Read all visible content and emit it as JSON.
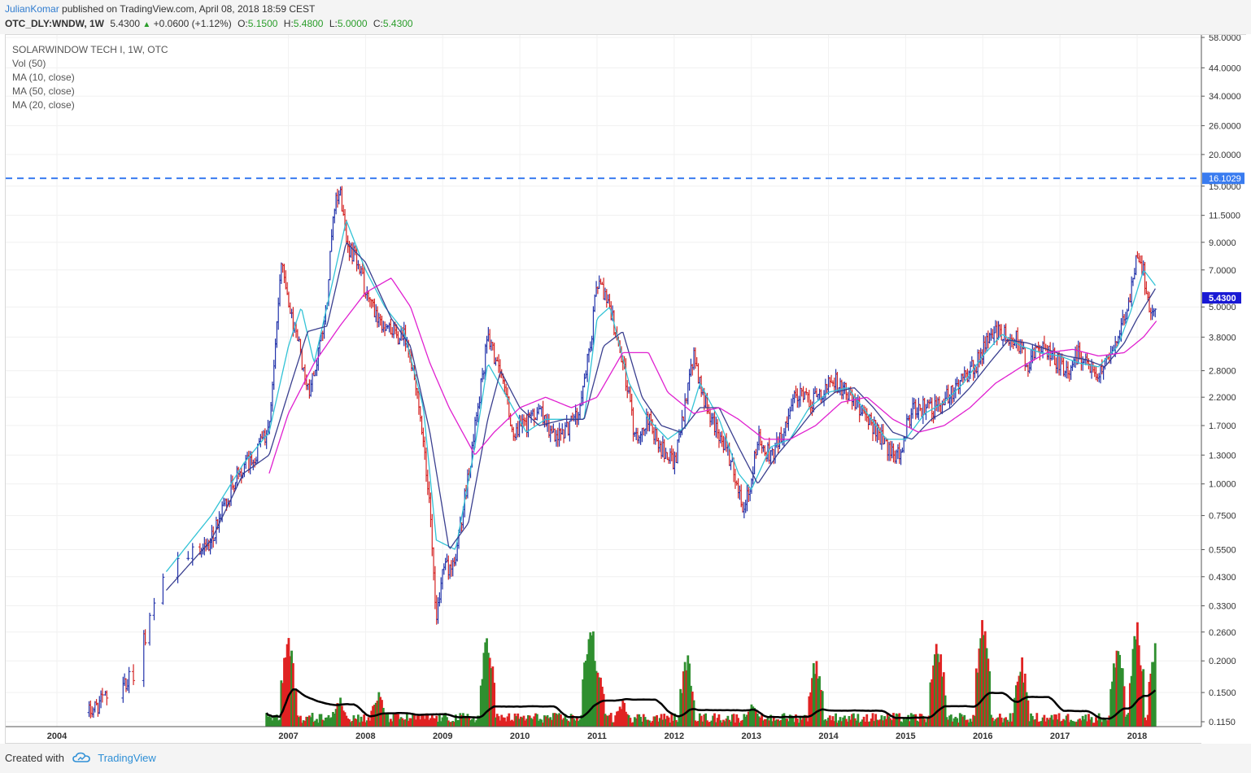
{
  "header": {
    "author": "JulianKomar",
    "published_text": "published on TradingView.com, April 08, 2018 18:59 CEST",
    "symbol": "OTC_DLY:WNDW, 1W",
    "last": "5.4300",
    "change": "+0.0600 (+1.12%)",
    "o_label": "O:",
    "o_value": "5.1500",
    "h_label": "H:",
    "h_value": "5.4800",
    "l_label": "L:",
    "l_value": "5.0000",
    "c_label": "C:",
    "c_value": "5.4300"
  },
  "legend": {
    "title": "SOLARWINDOW TECH I, 1W, OTC",
    "vol": "Vol (50)",
    "ma10": "MA (10, close)",
    "ma50": "MA (50, close)",
    "ma20": "MA (20, close)"
  },
  "footer": {
    "created_with": "Created with",
    "brand": "TradingView"
  },
  "colors": {
    "up": "#2233aa",
    "down": "#d42222",
    "vol_up": "#2f8f2f",
    "vol_down": "#e02222",
    "ma10": "#33c3d6",
    "ma20": "#3a3f8f",
    "ma50": "#e020d0",
    "vol_ma": "#000000",
    "hline": "#3a7cf0",
    "last_price_tag": "#1919d4",
    "hline_tag": "#3a7cf0"
  },
  "chart_data": {
    "type": "line",
    "scale": "log",
    "ylim": [
      0.11,
      58.0
    ],
    "xlim": [
      "2003-12",
      "2018-06"
    ],
    "x_ticks": [
      "2004",
      "2007",
      "2008",
      "2009",
      "2010",
      "2011",
      "2012",
      "2013",
      "2014",
      "2015",
      "2016",
      "2017",
      "2018"
    ],
    "y_ticks": [
      "0.1150",
      "0.1500",
      "0.2000",
      "0.2600",
      "0.3300",
      "0.4300",
      "0.5500",
      "0.7500",
      "1.0000",
      "1.3000",
      "1.7000",
      "2.2000",
      "2.8000",
      "3.8000",
      "5.0000",
      "7.0000",
      "9.0000",
      "11.5000",
      "15.0000",
      "20.0000",
      "26.0000",
      "34.0000",
      "44.0000",
      "58.0000"
    ],
    "horizontal_line": {
      "value": 16.1029,
      "label": "16.1029"
    },
    "last_price": {
      "value": 5.43,
      "label": "5.4300"
    },
    "series": [
      {
        "name": "Price (close)",
        "points": [
          [
            "2004-06",
            0.125
          ],
          [
            "2005-01",
            0.18
          ],
          [
            "2005-06",
            0.45
          ],
          [
            "2006-01",
            0.6
          ],
          [
            "2006-05",
            1.1
          ],
          [
            "2006-08",
            1.3
          ],
          [
            "2006-10",
            1.7
          ],
          [
            "2006-11",
            3.8
          ],
          [
            "2006-12",
            7.8
          ],
          [
            "2007-01",
            5.0
          ],
          [
            "2007-03",
            3.2
          ],
          [
            "2007-04",
            2.3
          ],
          [
            "2007-06",
            3.5
          ],
          [
            "2007-07",
            5.5
          ],
          [
            "2007-08",
            12.5
          ],
          [
            "2007-09",
            14.5
          ],
          [
            "2007-10",
            9.0
          ],
          [
            "2007-12",
            7.5
          ],
          [
            "2008-01",
            5.5
          ],
          [
            "2008-03",
            4.5
          ],
          [
            "2008-05",
            4.0
          ],
          [
            "2008-07",
            3.8
          ],
          [
            "2008-09",
            2.4
          ],
          [
            "2008-11",
            0.8
          ],
          [
            "2008-12",
            0.3
          ],
          [
            "2009-01",
            0.45
          ],
          [
            "2009-03",
            0.5
          ],
          [
            "2009-05",
            1.1
          ],
          [
            "2009-07",
            2.5
          ],
          [
            "2009-08",
            3.8
          ],
          [
            "2009-10",
            2.8
          ],
          [
            "2009-12",
            1.6
          ],
          [
            "2010-02",
            1.7
          ],
          [
            "2010-04",
            2.0
          ],
          [
            "2010-06",
            1.6
          ],
          [
            "2010-08",
            1.6
          ],
          [
            "2010-10",
            1.9
          ],
          [
            "2010-12",
            3.5
          ],
          [
            "2011-01",
            6.5
          ],
          [
            "2011-03",
            5.0
          ],
          [
            "2011-05",
            3.0
          ],
          [
            "2011-07",
            1.5
          ],
          [
            "2011-09",
            1.8
          ],
          [
            "2011-11",
            1.4
          ],
          [
            "2012-01",
            1.2
          ],
          [
            "2012-03",
            2.2
          ],
          [
            "2012-04",
            3.2
          ],
          [
            "2012-06",
            2.0
          ],
          [
            "2012-08",
            1.6
          ],
          [
            "2012-10",
            1.2
          ],
          [
            "2012-12",
            0.78
          ],
          [
            "2013-02",
            1.5
          ],
          [
            "2013-04",
            1.3
          ],
          [
            "2013-06",
            1.6
          ],
          [
            "2013-08",
            2.3
          ],
          [
            "2013-10",
            2.1
          ],
          [
            "2013-12",
            2.3
          ],
          [
            "2014-02",
            2.6
          ],
          [
            "2014-04",
            2.3
          ],
          [
            "2014-06",
            2.0
          ],
          [
            "2014-08",
            1.7
          ],
          [
            "2014-10",
            1.4
          ],
          [
            "2014-12",
            1.3
          ],
          [
            "2015-02",
            2.0
          ],
          [
            "2015-04",
            2.0
          ],
          [
            "2015-06",
            2.0
          ],
          [
            "2015-08",
            2.3
          ],
          [
            "2015-10",
            2.6
          ],
          [
            "2015-12",
            3.0
          ],
          [
            "2016-02",
            3.8
          ],
          [
            "2016-04",
            4.0
          ],
          [
            "2016-06",
            3.8
          ],
          [
            "2016-08",
            3.0
          ],
          [
            "2016-10",
            3.4
          ],
          [
            "2016-12",
            3.2
          ],
          [
            "2017-02",
            2.8
          ],
          [
            "2017-04",
            3.3
          ],
          [
            "2017-06",
            2.8
          ],
          [
            "2017-08",
            2.9
          ],
          [
            "2017-10",
            4.0
          ],
          [
            "2017-12",
            5.5
          ],
          [
            "2018-01",
            8.5
          ],
          [
            "2018-02",
            7.0
          ],
          [
            "2018-03",
            4.5
          ],
          [
            "2018-04",
            5.43
          ]
        ]
      },
      {
        "name": "MA (10, close)",
        "points": [
          [
            "2005-06",
            0.45
          ],
          [
            "2006-01",
            0.75
          ],
          [
            "2006-06",
            1.2
          ],
          [
            "2006-10",
            1.6
          ],
          [
            "2007-01",
            3.5
          ],
          [
            "2007-03",
            5.0
          ],
          [
            "2007-05",
            3.0
          ],
          [
            "2007-08",
            6.5
          ],
          [
            "2007-10",
            11.0
          ],
          [
            "2008-01",
            7.0
          ],
          [
            "2008-04",
            5.0
          ],
          [
            "2008-07",
            4.0
          ],
          [
            "2008-10",
            2.0
          ],
          [
            "2008-12",
            0.6
          ],
          [
            "2009-03",
            0.55
          ],
          [
            "2009-06",
            1.4
          ],
          [
            "2009-08",
            3.0
          ],
          [
            "2009-11",
            2.2
          ],
          [
            "2010-02",
            1.6
          ],
          [
            "2010-05",
            1.8
          ],
          [
            "2010-08",
            1.8
          ],
          [
            "2010-11",
            1.8
          ],
          [
            "2011-01",
            4.5
          ],
          [
            "2011-03",
            5.0
          ],
          [
            "2011-06",
            2.5
          ],
          [
            "2011-09",
            1.8
          ],
          [
            "2011-12",
            1.5
          ],
          [
            "2012-03",
            1.7
          ],
          [
            "2012-05",
            2.5
          ],
          [
            "2012-08",
            1.8
          ],
          [
            "2012-11",
            1.1
          ],
          [
            "2013-01",
            0.95
          ],
          [
            "2013-04",
            1.4
          ],
          [
            "2013-07",
            1.5
          ],
          [
            "2013-10",
            2.0
          ],
          [
            "2014-01",
            2.3
          ],
          [
            "2014-04",
            2.4
          ],
          [
            "2014-07",
            1.9
          ],
          [
            "2014-10",
            1.5
          ],
          [
            "2015-01",
            1.5
          ],
          [
            "2015-04",
            1.9
          ],
          [
            "2015-07",
            2.1
          ],
          [
            "2015-10",
            2.5
          ],
          [
            "2016-01",
            3.2
          ],
          [
            "2016-04",
            3.9
          ],
          [
            "2016-07",
            3.5
          ],
          [
            "2016-10",
            3.3
          ],
          [
            "2017-01",
            3.2
          ],
          [
            "2017-04",
            3.0
          ],
          [
            "2017-07",
            2.9
          ],
          [
            "2017-10",
            3.5
          ],
          [
            "2017-12",
            4.8
          ],
          [
            "2018-02",
            7.0
          ],
          [
            "2018-04",
            6.0
          ]
        ]
      },
      {
        "name": "MA (20, close)",
        "points": [
          [
            "2005-06",
            0.38
          ],
          [
            "2006-01",
            0.6
          ],
          [
            "2006-06",
            1.1
          ],
          [
            "2006-10",
            1.3
          ],
          [
            "2007-01",
            2.3
          ],
          [
            "2007-04",
            4.0
          ],
          [
            "2007-07",
            4.2
          ],
          [
            "2007-10",
            9.0
          ],
          [
            "2008-01",
            7.5
          ],
          [
            "2008-05",
            4.5
          ],
          [
            "2008-08",
            3.5
          ],
          [
            "2008-11",
            1.6
          ],
          [
            "2009-02",
            0.55
          ],
          [
            "2009-05",
            0.7
          ],
          [
            "2009-08",
            1.8
          ],
          [
            "2009-10",
            2.8
          ],
          [
            "2010-01",
            2.0
          ],
          [
            "2010-04",
            1.7
          ],
          [
            "2010-08",
            1.8
          ],
          [
            "2010-11",
            1.8
          ],
          [
            "2011-02",
            3.5
          ],
          [
            "2011-05",
            4.0
          ],
          [
            "2011-08",
            2.2
          ],
          [
            "2011-11",
            1.7
          ],
          [
            "2012-02",
            1.6
          ],
          [
            "2012-05",
            2.0
          ],
          [
            "2012-08",
            2.0
          ],
          [
            "2012-11",
            1.4
          ],
          [
            "2013-02",
            1.0
          ],
          [
            "2013-05",
            1.3
          ],
          [
            "2013-08",
            1.6
          ],
          [
            "2013-11",
            2.0
          ],
          [
            "2014-02",
            2.3
          ],
          [
            "2014-05",
            2.4
          ],
          [
            "2014-08",
            2.0
          ],
          [
            "2014-11",
            1.6
          ],
          [
            "2015-02",
            1.5
          ],
          [
            "2015-05",
            1.8
          ],
          [
            "2015-08",
            2.0
          ],
          [
            "2015-11",
            2.4
          ],
          [
            "2016-02",
            3.0
          ],
          [
            "2016-05",
            3.7
          ],
          [
            "2016-08",
            3.6
          ],
          [
            "2016-11",
            3.4
          ],
          [
            "2017-02",
            3.2
          ],
          [
            "2017-05",
            3.1
          ],
          [
            "2017-08",
            2.9
          ],
          [
            "2017-11",
            3.6
          ],
          [
            "2018-01",
            4.5
          ],
          [
            "2018-04",
            6.0
          ]
        ]
      },
      {
        "name": "MA (50, close)",
        "points": [
          [
            "2006-10",
            1.1
          ],
          [
            "2007-01",
            1.9
          ],
          [
            "2007-05",
            3.0
          ],
          [
            "2007-09",
            4.2
          ],
          [
            "2008-01",
            5.7
          ],
          [
            "2008-05",
            6.5
          ],
          [
            "2008-08",
            5.0
          ],
          [
            "2008-11",
            3.0
          ],
          [
            "2009-02",
            2.0
          ],
          [
            "2009-06",
            1.3
          ],
          [
            "2009-09",
            1.6
          ],
          [
            "2010-01",
            2.0
          ],
          [
            "2010-05",
            2.2
          ],
          [
            "2010-09",
            2.0
          ],
          [
            "2011-01",
            2.2
          ],
          [
            "2011-05",
            3.3
          ],
          [
            "2011-09",
            3.3
          ],
          [
            "2011-12",
            2.3
          ],
          [
            "2012-04",
            1.9
          ],
          [
            "2012-08",
            2.0
          ],
          [
            "2012-11",
            1.8
          ],
          [
            "2013-03",
            1.5
          ],
          [
            "2013-07",
            1.5
          ],
          [
            "2013-11",
            1.7
          ],
          [
            "2014-03",
            2.1
          ],
          [
            "2014-07",
            2.2
          ],
          [
            "2014-11",
            1.8
          ],
          [
            "2015-03",
            1.6
          ],
          [
            "2015-07",
            1.7
          ],
          [
            "2015-11",
            2.0
          ],
          [
            "2016-03",
            2.5
          ],
          [
            "2016-07",
            2.9
          ],
          [
            "2016-11",
            3.3
          ],
          [
            "2017-03",
            3.4
          ],
          [
            "2017-07",
            3.2
          ],
          [
            "2017-11",
            3.3
          ],
          [
            "2018-02",
            3.8
          ],
          [
            "2018-04",
            4.4
          ]
        ]
      }
    ],
    "volume_spikes": [
      [
        "2007-01",
        0.82
      ],
      [
        "2007-09",
        0.25
      ],
      [
        "2008-03",
        0.3
      ],
      [
        "2009-08",
        0.84
      ],
      [
        "2010-12",
        1.0
      ],
      [
        "2011-01",
        0.6
      ],
      [
        "2011-05",
        0.22
      ],
      [
        "2012-03",
        0.62
      ],
      [
        "2013-01",
        0.2
      ],
      [
        "2013-11",
        0.62
      ],
      [
        "2015-06",
        0.82
      ],
      [
        "2016-01",
        0.94
      ],
      [
        "2016-07",
        0.6
      ],
      [
        "2017-10",
        0.77
      ],
      [
        "2018-01",
        0.92
      ],
      [
        "2018-04",
        0.82
      ]
    ],
    "volume_ma_level": 0.15
  }
}
